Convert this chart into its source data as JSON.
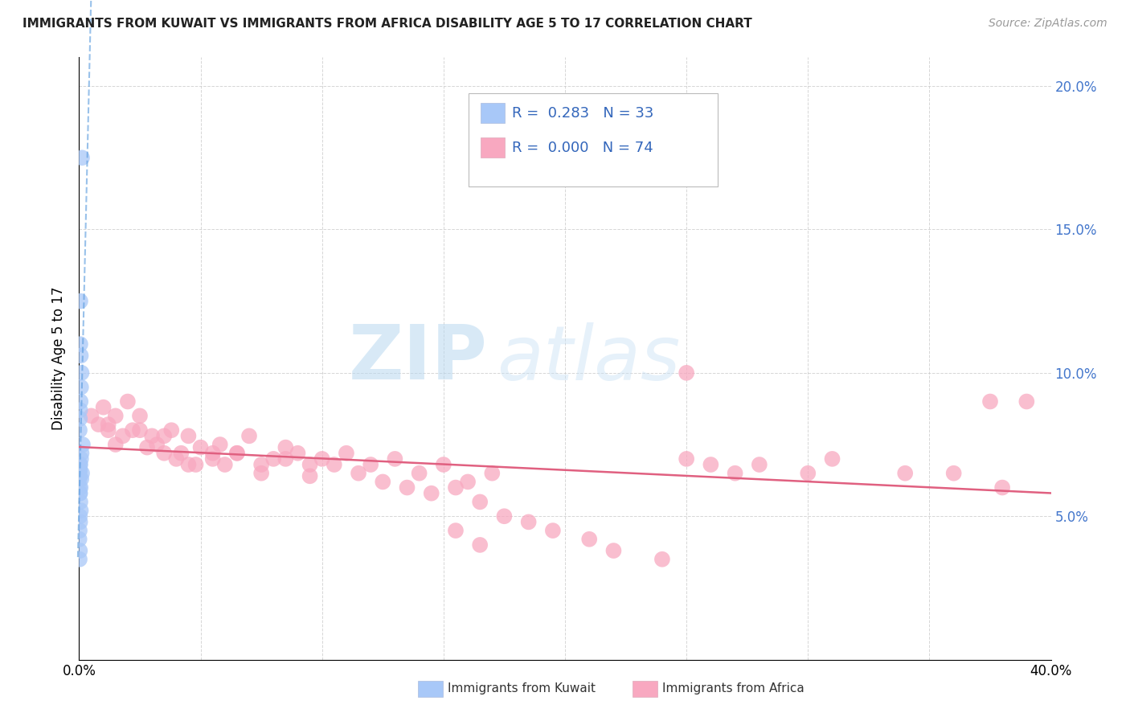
{
  "title": "IMMIGRANTS FROM KUWAIT VS IMMIGRANTS FROM AFRICA DISABILITY AGE 5 TO 17 CORRELATION CHART",
  "source": "Source: ZipAtlas.com",
  "ylabel": "Disability Age 5 to 17",
  "xlim": [
    0.0,
    0.4
  ],
  "ylim": [
    0.0,
    0.21
  ],
  "xticks": [
    0.0,
    0.05,
    0.1,
    0.15,
    0.2,
    0.25,
    0.3,
    0.35,
    0.4
  ],
  "xtick_labels": [
    "0.0%",
    "",
    "",
    "",
    "",
    "",
    "",
    "",
    "40.0%"
  ],
  "yticks_right": [
    0.05,
    0.1,
    0.15,
    0.2
  ],
  "ytick_right_labels": [
    "5.0%",
    "10.0%",
    "15.0%",
    "20.0%"
  ],
  "legend_kuwait_R": "0.283",
  "legend_kuwait_N": "33",
  "legend_africa_R": "0.000",
  "legend_africa_N": "74",
  "kuwait_color": "#a8c8f8",
  "africa_color": "#f8a8c0",
  "kuwait_line_color": "#5599dd",
  "africa_line_color": "#e06080",
  "watermark_zip": "ZIP",
  "watermark_atlas": "atlas",
  "kuwait_x": [
    0.0012,
    0.0005,
    0.0005,
    0.0007,
    0.001,
    0.0008,
    0.0006,
    0.0004,
    0.0003,
    0.0002,
    0.0015,
    0.001,
    0.0008,
    0.0005,
    0.0003,
    0.0002,
    0.0012,
    0.0009,
    0.0006,
    0.0004,
    0.0003,
    0.0002,
    0.0001,
    0.0001,
    0.0003,
    0.0005,
    0.0007,
    0.0003,
    0.0004,
    0.0002,
    0.0001,
    0.0003,
    0.0002
  ],
  "kuwait_y": [
    0.175,
    0.125,
    0.11,
    0.106,
    0.1,
    0.095,
    0.09,
    0.087,
    0.084,
    0.08,
    0.075,
    0.072,
    0.07,
    0.068,
    0.066,
    0.064,
    0.065,
    0.063,
    0.06,
    0.058,
    0.068,
    0.066,
    0.063,
    0.06,
    0.058,
    0.055,
    0.052,
    0.05,
    0.048,
    0.045,
    0.042,
    0.038,
    0.035
  ],
  "africa_x": [
    0.005,
    0.008,
    0.01,
    0.012,
    0.015,
    0.018,
    0.012,
    0.02,
    0.022,
    0.025,
    0.028,
    0.03,
    0.032,
    0.035,
    0.038,
    0.04,
    0.042,
    0.045,
    0.048,
    0.05,
    0.055,
    0.058,
    0.06,
    0.065,
    0.07,
    0.075,
    0.08,
    0.085,
    0.09,
    0.095,
    0.1,
    0.11,
    0.12,
    0.13,
    0.14,
    0.15,
    0.16,
    0.17,
    0.015,
    0.025,
    0.035,
    0.045,
    0.055,
    0.065,
    0.075,
    0.085,
    0.095,
    0.105,
    0.115,
    0.125,
    0.135,
    0.145,
    0.155,
    0.165,
    0.175,
    0.185,
    0.195,
    0.21,
    0.22,
    0.24,
    0.25,
    0.26,
    0.27,
    0.28,
    0.3,
    0.31,
    0.34,
    0.36,
    0.38,
    0.25,
    0.155,
    0.165,
    0.375,
    0.39
  ],
  "africa_y": [
    0.085,
    0.082,
    0.088,
    0.08,
    0.085,
    0.078,
    0.082,
    0.09,
    0.08,
    0.085,
    0.074,
    0.078,
    0.075,
    0.072,
    0.08,
    0.07,
    0.072,
    0.078,
    0.068,
    0.074,
    0.072,
    0.075,
    0.068,
    0.072,
    0.078,
    0.068,
    0.07,
    0.074,
    0.072,
    0.068,
    0.07,
    0.072,
    0.068,
    0.07,
    0.065,
    0.068,
    0.062,
    0.065,
    0.075,
    0.08,
    0.078,
    0.068,
    0.07,
    0.072,
    0.065,
    0.07,
    0.064,
    0.068,
    0.065,
    0.062,
    0.06,
    0.058,
    0.06,
    0.055,
    0.05,
    0.048,
    0.045,
    0.042,
    0.038,
    0.035,
    0.07,
    0.068,
    0.065,
    0.068,
    0.065,
    0.07,
    0.065,
    0.065,
    0.06,
    0.1,
    0.045,
    0.04,
    0.09,
    0.09
  ]
}
